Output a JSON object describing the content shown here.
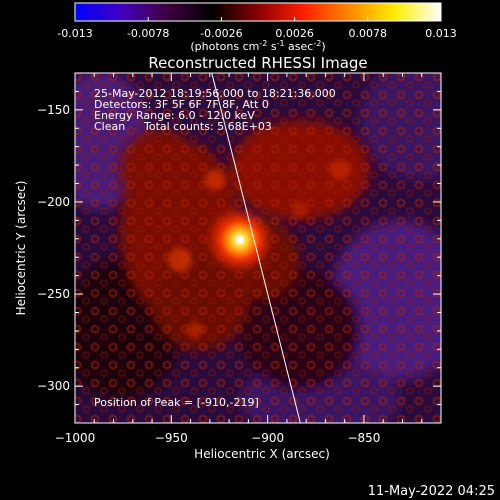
{
  "colorbar": {
    "ticks": [
      "-0.013",
      "-0.0078",
      "-0.0026",
      "0.0026",
      "0.0078",
      "0.013"
    ],
    "units_prefix": "(photons cm",
    "units_exp1": "-2",
    "units_mid1": " s",
    "units_exp2": "-1",
    "units_mid2": " asec",
    "units_exp3": "-2",
    "units_suffix": ")",
    "range": [
      -0.013,
      0.013
    ],
    "colors": [
      "#0000ff",
      "#4000c0",
      "#400040",
      "#000000",
      "#8a0000",
      "#ff2000",
      "#ff8800",
      "#ffee00",
      "#ffffff"
    ]
  },
  "overlay": {
    "time_range": "25-May-2012 18:19:56.000 to 18:21:36.000",
    "detectors": "Detectors: 3F 5F 6F 7F 8F, Att 0",
    "energy": "Energy Range: 6.0 - 12.0 keV",
    "method": "Clean",
    "counts": "Total counts: 5.68E+03",
    "peak": "Position of Peak = [-910,-219]"
  },
  "timestamp": "11-May-2022 04:25",
  "chart_data": {
    "type": "heatmap",
    "title": "Reconstructed RHESSI Image",
    "xlabel": "Heliocentric X (arcsec)",
    "ylabel": "Heliocentric Y (arcsec)",
    "xlim": [
      -1000,
      -810
    ],
    "ylim": [
      -320,
      -130
    ],
    "xticks": [
      -1000,
      -950,
      -900,
      -850
    ],
    "yticks": [
      -150,
      -200,
      -250,
      -300
    ],
    "peak": [
      -910,
      -219
    ],
    "limb_x_at_top": -929,
    "limb_x_at_bottom": -883,
    "grid": false
  }
}
